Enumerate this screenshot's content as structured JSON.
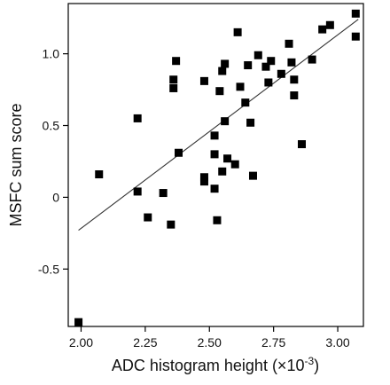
{
  "chart_data": {
    "type": "scatter",
    "title": "",
    "xlabel": "ADC histogram height (×10",
    "xlabel_exponent": "-3",
    "xlabel_close": ")",
    "ylabel": "MSFC sum score",
    "xlim": [
      1.95,
      3.1
    ],
    "ylim": [
      -0.9,
      1.35
    ],
    "xticks": [
      2.0,
      2.25,
      2.5,
      2.75,
      3.0
    ],
    "xtick_labels": [
      "2.00",
      "2.25",
      "2.50",
      "2.75",
      "3.00"
    ],
    "yticks": [
      -0.5,
      0.0,
      0.5,
      1.0
    ],
    "ytick_labels": [
      "-0.5",
      "0",
      "0.5",
      "1.0"
    ],
    "grid": false,
    "legend": "none",
    "marker": "square",
    "marker_color": "#000000",
    "line_color": "#333333",
    "fit_line": {
      "x": [
        1.99,
        3.08
      ],
      "y": [
        -0.23,
        1.24
      ]
    },
    "points": [
      [
        1.99,
        -0.87
      ],
      [
        2.07,
        0.16
      ],
      [
        2.22,
        0.55
      ],
      [
        2.22,
        0.04
      ],
      [
        2.26,
        -0.14
      ],
      [
        2.32,
        0.03
      ],
      [
        2.35,
        -0.19
      ],
      [
        2.36,
        0.82
      ],
      [
        2.36,
        0.76
      ],
      [
        2.37,
        0.95
      ],
      [
        2.38,
        0.31
      ],
      [
        2.48,
        0.81
      ],
      [
        2.48,
        0.14
      ],
      [
        2.48,
        0.11
      ],
      [
        2.52,
        0.43
      ],
      [
        2.52,
        0.3
      ],
      [
        2.52,
        0.06
      ],
      [
        2.53,
        -0.16
      ],
      [
        2.54,
        0.74
      ],
      [
        2.55,
        0.88
      ],
      [
        2.56,
        0.93
      ],
      [
        2.56,
        0.53
      ],
      [
        2.55,
        0.18
      ],
      [
        2.57,
        0.27
      ],
      [
        2.6,
        0.23
      ],
      [
        2.61,
        1.15
      ],
      [
        2.62,
        0.77
      ],
      [
        2.64,
        0.66
      ],
      [
        2.65,
        0.92
      ],
      [
        2.66,
        0.52
      ],
      [
        2.67,
        0.15
      ],
      [
        2.69,
        0.99
      ],
      [
        2.72,
        0.91
      ],
      [
        2.73,
        0.8
      ],
      [
        2.74,
        0.95
      ],
      [
        2.78,
        0.86
      ],
      [
        2.81,
        1.07
      ],
      [
        2.82,
        0.94
      ],
      [
        2.83,
        0.82
      ],
      [
        2.83,
        0.71
      ],
      [
        2.86,
        0.37
      ],
      [
        2.9,
        0.96
      ],
      [
        2.94,
        1.17
      ],
      [
        2.97,
        1.2
      ],
      [
        3.07,
        1.28
      ],
      [
        3.07,
        1.12
      ]
    ]
  }
}
